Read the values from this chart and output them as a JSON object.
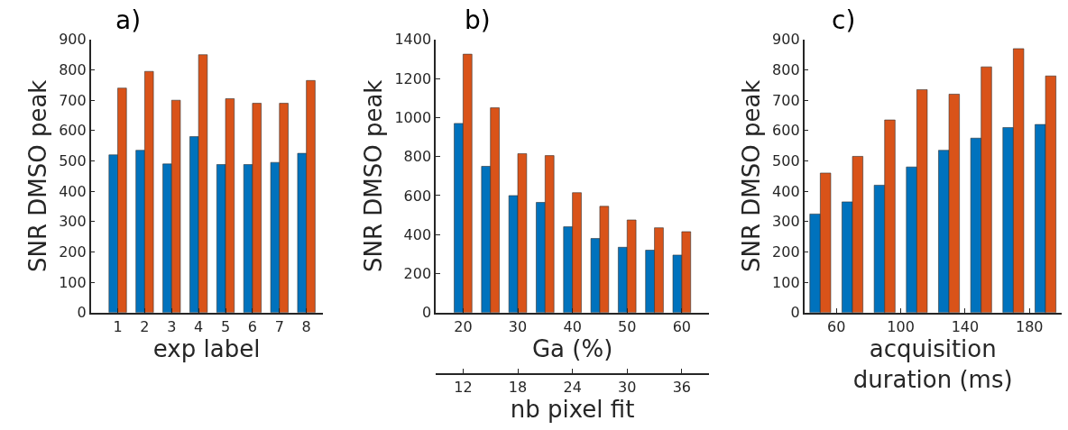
{
  "chart_data": [
    {
      "type": "bar",
      "title": "a)",
      "xlabel": "exp label",
      "ylabel": "SNR DMSO peak",
      "x": [
        1,
        2,
        3,
        4,
        5,
        6,
        7,
        8
      ],
      "xlim": [
        0,
        8.6
      ],
      "xticks": [
        1,
        2,
        3,
        4,
        5,
        6,
        7,
        8
      ],
      "ylim": [
        0,
        900
      ],
      "yticks": [
        0,
        100,
        200,
        300,
        400,
        500,
        600,
        700,
        800,
        900
      ],
      "series": [
        {
          "color": "#0072bd",
          "values": [
            520,
            535,
            490,
            580,
            488,
            488,
            495,
            525
          ]
        },
        {
          "color": "#d95319",
          "values": [
            740,
            795,
            700,
            850,
            705,
            690,
            690,
            765
          ]
        }
      ]
    },
    {
      "type": "bar",
      "title": "b)",
      "xlabel": "Ga (%)",
      "ylabel": "SNR DMSO peak",
      "x": [
        20,
        25,
        30,
        35,
        40,
        45,
        50,
        55,
        60
      ],
      "xlim": [
        15,
        65
      ],
      "xticks": [
        20,
        30,
        40,
        50,
        60
      ],
      "x2label": "nb pixel fit",
      "x2lim": [
        9,
        39
      ],
      "x2ticks": [
        12,
        18,
        24,
        30,
        36
      ],
      "ylim": [
        0,
        1400
      ],
      "yticks": [
        0,
        200,
        400,
        600,
        800,
        1000,
        1200,
        1400
      ],
      "series": [
        {
          "color": "#0072bd",
          "values": [
            970,
            750,
            600,
            565,
            440,
            380,
            335,
            320,
            295
          ]
        },
        {
          "color": "#d95319",
          "values": [
            1325,
            1050,
            815,
            805,
            615,
            545,
            475,
            435,
            415
          ]
        }
      ]
    },
    {
      "type": "bar",
      "title": "c)",
      "xlabel": "acquisition\nduration (ms)",
      "ylabel": "SNR DMSO peak",
      "x": [
        50,
        70,
        90,
        110,
        130,
        150,
        170,
        190
      ],
      "xlim": [
        40,
        200
      ],
      "xticks": [
        60,
        100,
        140,
        180
      ],
      "ylim": [
        0,
        900
      ],
      "yticks": [
        0,
        100,
        200,
        300,
        400,
        500,
        600,
        700,
        800,
        900
      ],
      "series": [
        {
          "color": "#0072bd",
          "values": [
            325,
            365,
            420,
            480,
            535,
            575,
            610,
            620
          ]
        },
        {
          "color": "#d95319",
          "values": [
            460,
            515,
            635,
            735,
            720,
            810,
            870,
            780
          ]
        }
      ]
    }
  ]
}
